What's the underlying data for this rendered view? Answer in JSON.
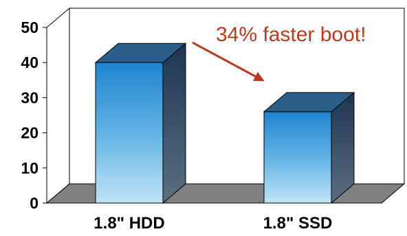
{
  "chart_data": {
    "type": "bar",
    "categories": [
      "1.8\" HDD",
      "1.8\" SSD"
    ],
    "values": [
      40,
      26
    ],
    "ylim": [
      0,
      50
    ],
    "yticks": [
      0,
      10,
      20,
      30,
      40,
      50
    ],
    "ytick_labels": [
      "0",
      "10",
      "20",
      "30",
      "40",
      "50"
    ],
    "title": "",
    "xlabel": "",
    "ylabel": "",
    "grid": false,
    "style": "3d",
    "annotation": {
      "text": "34% faster boot!",
      "color": "#c0391b"
    }
  }
}
